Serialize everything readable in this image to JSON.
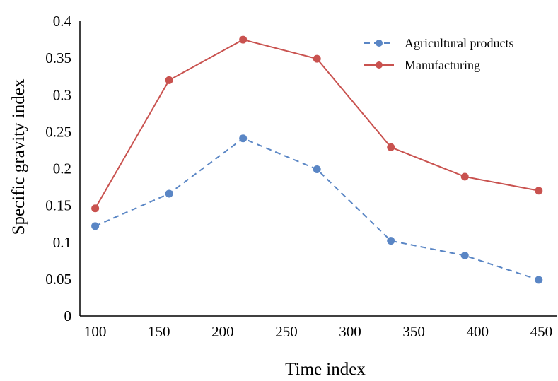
{
  "chart_data": {
    "type": "line",
    "title": "",
    "xlabel": "Time index",
    "ylabel": "Specific gravity index",
    "x": [
      100,
      158,
      216,
      274,
      332,
      390,
      448
    ],
    "x_ticks": [
      "100",
      "150",
      "200",
      "250",
      "300",
      "350",
      "400",
      "450"
    ],
    "y_ticks": [
      "0",
      "0.05",
      "0.1",
      "0.15",
      "0.2",
      "0.25",
      "0.3",
      "0.35",
      "0.4"
    ],
    "xlim": [
      88,
      462
    ],
    "ylim": [
      0,
      0.4
    ],
    "grid": false,
    "legend_position": "top-right",
    "series": [
      {
        "name": "Agricultural products",
        "values": [
          0.122,
          0.166,
          0.241,
          0.199,
          0.102,
          0.082,
          0.049
        ],
        "color": "#5a86c5",
        "line_style": "dashed"
      },
      {
        "name": "Manufacturing",
        "values": [
          0.146,
          0.32,
          0.375,
          0.349,
          0.229,
          0.189,
          0.17
        ],
        "color": "#c9524f",
        "line_style": "solid"
      }
    ]
  }
}
